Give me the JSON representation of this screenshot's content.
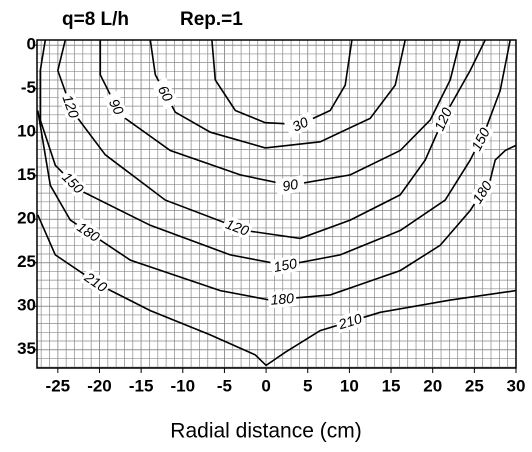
{
  "chart_data": {
    "type": "contour",
    "title": "q=8 L/h",
    "subtitle": "Rep.=1",
    "xlabel": "Radial distance (cm)",
    "xlim": [
      -27.5,
      30
    ],
    "ylim": [
      -37.1,
      0.6
    ],
    "xticks": [
      -25,
      -20,
      -15,
      -10,
      -5,
      0,
      5,
      10,
      15,
      20,
      25,
      30
    ],
    "yticks": [
      0,
      -5,
      {
        "value": -10,
        "label": "10"
      },
      {
        "value": -15,
        "label": "15"
      },
      {
        "value": -20,
        "label": "20"
      },
      {
        "value": -25,
        "label": "25"
      },
      {
        "value": -30,
        "label": "30"
      },
      {
        "value": -35,
        "label": "35"
      }
    ],
    "grid": true,
    "grid_step": 1,
    "color": "#000000",
    "contours": [
      {
        "level": 30,
        "x": [
          -6.5,
          -6.1,
          -3.7,
          -0.1,
          4.1,
          7.7,
          9.5,
          10.3
        ],
        "y": [
          0.6,
          -4,
          -7.5,
          -8.9,
          -9.1,
          -7.5,
          -4.6,
          0.6
        ]
      },
      {
        "level": 60,
        "x": [
          -13.9,
          -13.3,
          -10.9,
          -6.7,
          -0.1,
          6.5,
          12.5,
          15.5,
          16.7
        ],
        "y": [
          0.6,
          -3.4,
          -7.7,
          -10,
          -11.8,
          -11.1,
          -8.4,
          -4.6,
          0.6
        ]
      },
      {
        "level": 90,
        "x": [
          -19.9,
          -19.9,
          -17.5,
          -11.5,
          -3.1,
          2.9,
          10.1,
          16.1,
          19.7,
          22.1,
          23.3
        ],
        "y": [
          0.6,
          -3.4,
          -8,
          -12.1,
          -14.9,
          -16.1,
          -14.9,
          -12.1,
          -8.6,
          -4,
          0.6
        ]
      },
      {
        "level": 120,
        "x": [
          -24.1,
          -25,
          -23.3,
          -19.3,
          -12.1,
          -2.5,
          4.1,
          10.1,
          16.1,
          19.1,
          21.5,
          24.5,
          26.3
        ],
        "y": [
          0.6,
          -2.9,
          -7.5,
          -12.6,
          -17.8,
          -21.3,
          -22.2,
          -20.1,
          -17.2,
          -13.2,
          -8,
          -2.9,
          0.6
        ]
      },
      {
        "level": 150,
        "x": [
          -26.5,
          -27.1,
          -27.1,
          -25.3,
          -22.3,
          -13.9,
          -4.3,
          2.3,
          8.9,
          16.1,
          21.5,
          24.5,
          26.3,
          28.1,
          29.3
        ],
        "y": [
          0.6,
          -2.9,
          -8.6,
          -13.8,
          -16.7,
          -20.7,
          -24.1,
          -25.3,
          -24.1,
          -21.3,
          -17.8,
          -13.2,
          -9.8,
          -5.2,
          0.6
        ]
      },
      {
        "level": 180,
        "x": [
          -27.4,
          -25.9,
          -23.5,
          -16.3,
          -5.5,
          0.5,
          7.7,
          16.1,
          20.9,
          24.5,
          26.9,
          27.5,
          28.7,
          30
        ],
        "y": [
          -7.5,
          -16.1,
          -20.1,
          -24.7,
          -28.2,
          -29.3,
          -28.7,
          -25.9,
          -23,
          -19,
          -15.5,
          -13.2,
          -12.1,
          -11.5
        ]
      },
      {
        "level": 210,
        "x": [
          -27.4,
          -25.3,
          -19.9,
          -13.9,
          -6.7,
          -1.3,
          0,
          2.3,
          6.5,
          13.7,
          22.1,
          30
        ],
        "y": [
          -19.5,
          -24.1,
          -27.6,
          -30.5,
          -33.3,
          -35.6,
          -36.8,
          -35.3,
          -32.8,
          -30.7,
          -29.3,
          -28.2
        ]
      }
    ]
  }
}
